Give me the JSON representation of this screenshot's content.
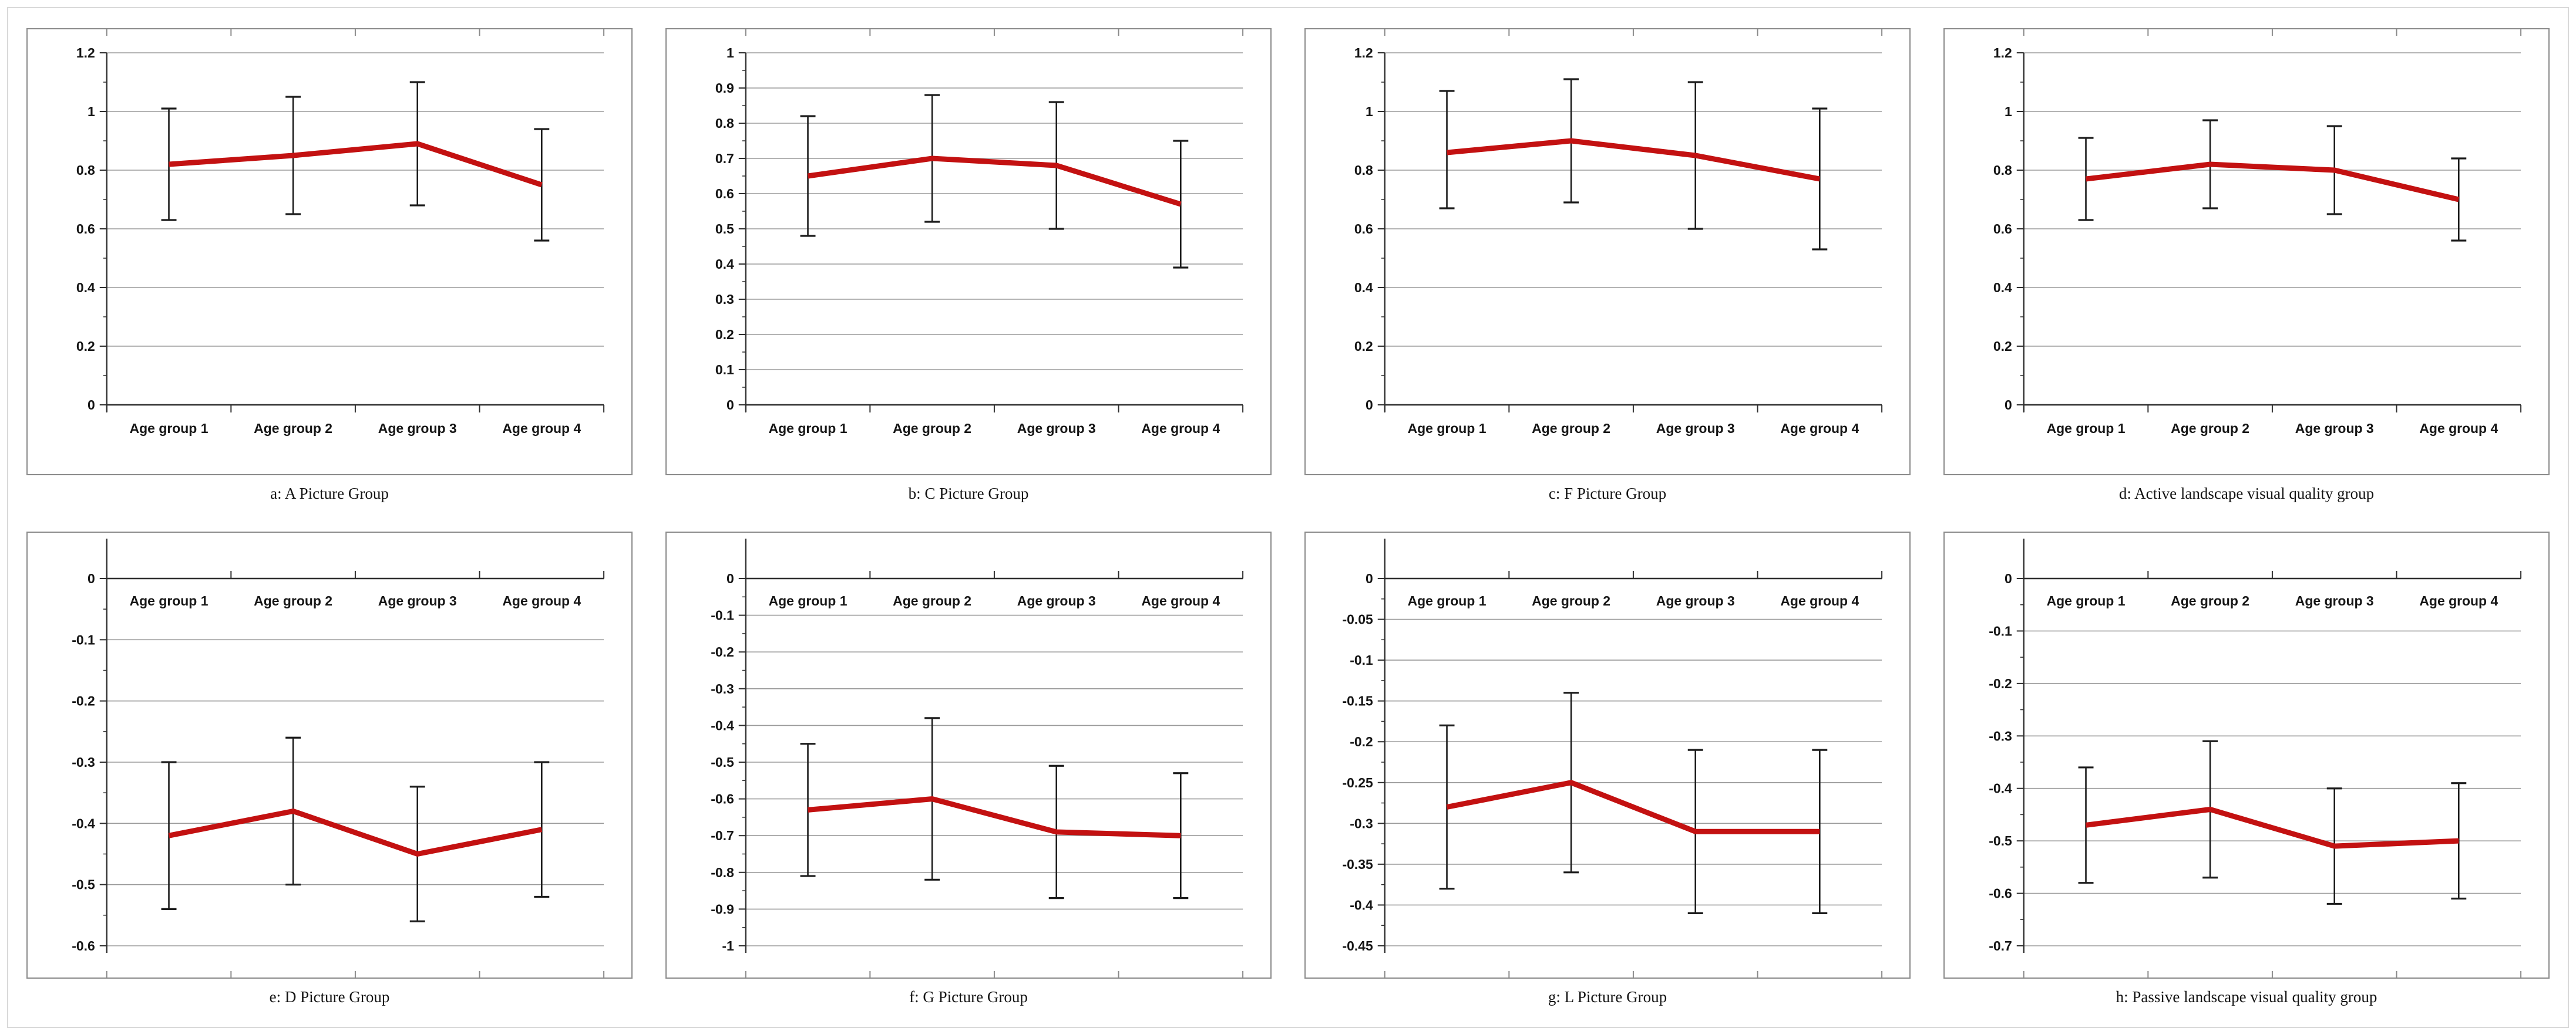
{
  "style": {
    "series_color": "#c31111",
    "grid_color": "#9b9b9b",
    "axis_color": "#2e2e2e",
    "error_bar_color": "#1c1c1c",
    "panel_border_color": "#8a8a8a",
    "frame_color": "#d9d9d9",
    "text_color": "#161616",
    "background": "#ffffff"
  },
  "chart_data": [
    {
      "id": "a",
      "type": "line",
      "caption": "a: A Picture Group",
      "x_axis_position": "bottom",
      "grid": true,
      "legend": "none",
      "categories": [
        "Age group 1",
        "Age group 2",
        "Age group 3",
        "Age group 4"
      ],
      "ylim": [
        0,
        1.2
      ],
      "ytick_values": [
        1.2,
        1,
        0.8,
        0.6,
        0.4,
        0.2,
        0
      ],
      "ytick_labels": [
        "1.2",
        "1",
        "0.8",
        "0.6",
        "0.4",
        "0.2",
        "0"
      ],
      "values": [
        0.82,
        0.85,
        0.89,
        0.75
      ],
      "err_low": [
        0.63,
        0.65,
        0.68,
        0.56
      ],
      "err_high": [
        1.01,
        1.05,
        1.1,
        0.94
      ]
    },
    {
      "id": "b",
      "type": "line",
      "caption": "b: C Picture Group",
      "x_axis_position": "bottom",
      "grid": true,
      "legend": "none",
      "categories": [
        "Age group 1",
        "Age group 2",
        "Age group 3",
        "Age group 4"
      ],
      "ylim": [
        0,
        1
      ],
      "ytick_values": [
        1,
        0.9,
        0.8,
        0.7,
        0.6,
        0.5,
        0.4,
        0.3,
        0.2,
        0.1,
        0
      ],
      "ytick_labels": [
        "1",
        "0.9",
        "0.8",
        "0.7",
        "0.6",
        "0.5",
        "0.4",
        "0.3",
        "0.2",
        "0.1",
        "0"
      ],
      "values": [
        0.65,
        0.7,
        0.68,
        0.57
      ],
      "err_low": [
        0.48,
        0.52,
        0.5,
        0.39
      ],
      "err_high": [
        0.82,
        0.88,
        0.86,
        0.75
      ]
    },
    {
      "id": "c",
      "type": "line",
      "caption": "c: F Picture Group",
      "x_axis_position": "bottom",
      "grid": true,
      "legend": "none",
      "categories": [
        "Age group 1",
        "Age group 2",
        "Age group 3",
        "Age group 4"
      ],
      "ylim": [
        0,
        1.2
      ],
      "ytick_values": [
        1.2,
        1,
        0.8,
        0.6,
        0.4,
        0.2,
        0
      ],
      "ytick_labels": [
        "1.2",
        "1",
        "0.8",
        "0.6",
        "0.4",
        "0.2",
        "0"
      ],
      "values": [
        0.86,
        0.9,
        0.85,
        0.77
      ],
      "err_low": [
        0.67,
        0.69,
        0.6,
        0.53
      ],
      "err_high": [
        1.07,
        1.11,
        1.1,
        1.01
      ]
    },
    {
      "id": "d",
      "type": "line",
      "caption": "d: Active landscape visual quality group",
      "x_axis_position": "bottom",
      "grid": true,
      "legend": "none",
      "categories": [
        "Age group 1",
        "Age group 2",
        "Age group 3",
        "Age group 4"
      ],
      "ylim": [
        0,
        1.2
      ],
      "ytick_values": [
        1.2,
        1,
        0.8,
        0.6,
        0.4,
        0.2,
        0
      ],
      "ytick_labels": [
        "1.2",
        "1",
        "0.8",
        "0.6",
        "0.4",
        "0.2",
        "0"
      ],
      "values": [
        0.77,
        0.82,
        0.8,
        0.7
      ],
      "err_low": [
        0.63,
        0.67,
        0.65,
        0.56
      ],
      "err_high": [
        0.91,
        0.97,
        0.95,
        0.84
      ]
    },
    {
      "id": "e",
      "type": "line",
      "caption": "e: D Picture Group",
      "x_axis_position": "top",
      "grid": true,
      "legend": "none",
      "categories": [
        "Age group 1",
        "Age group 2",
        "Age group 3",
        "Age group 4"
      ],
      "ylim": [
        -0.6,
        0
      ],
      "ytick_values": [
        0,
        -0.1,
        -0.2,
        -0.3,
        -0.4,
        -0.5,
        -0.6
      ],
      "ytick_labels": [
        "0",
        "-0.1",
        "-0.2",
        "-0.3",
        "-0.4",
        "-0.5",
        "-0.6"
      ],
      "values": [
        -0.42,
        -0.38,
        -0.45,
        -0.41
      ],
      "err_low": [
        -0.54,
        -0.5,
        -0.56,
        -0.52
      ],
      "err_high": [
        -0.3,
        -0.26,
        -0.34,
        -0.3
      ]
    },
    {
      "id": "f",
      "type": "line",
      "caption": "f: G Picture Group",
      "x_axis_position": "top",
      "grid": true,
      "legend": "none",
      "categories": [
        "Age group 1",
        "Age group 2",
        "Age group 3",
        "Age group 4"
      ],
      "ylim": [
        -1,
        0
      ],
      "ytick_values": [
        0,
        -0.1,
        -0.2,
        -0.3,
        -0.4,
        -0.5,
        -0.6,
        -0.7,
        -0.8,
        -0.9,
        -1
      ],
      "ytick_labels": [
        "0",
        "-0.1",
        "-0.2",
        "-0.3",
        "-0.4",
        "-0.5",
        "-0.6",
        "-0.7",
        "-0.8",
        "-0.9",
        "-1"
      ],
      "values": [
        -0.63,
        -0.6,
        -0.69,
        -0.7
      ],
      "err_low": [
        -0.81,
        -0.82,
        -0.87,
        -0.87
      ],
      "err_high": [
        -0.45,
        -0.38,
        -0.51,
        -0.53
      ]
    },
    {
      "id": "g",
      "type": "line",
      "caption": "g: L Picture Group",
      "x_axis_position": "top",
      "grid": true,
      "legend": "none",
      "categories": [
        "Age group 1",
        "Age group 2",
        "Age group 3",
        "Age group 4"
      ],
      "ylim": [
        -0.45,
        0
      ],
      "ytick_values": [
        0,
        -0.05,
        -0.1,
        -0.15,
        -0.2,
        -0.25,
        -0.3,
        -0.35,
        -0.4,
        -0.45
      ],
      "ytick_labels": [
        "0",
        "-0.05",
        "-0.1",
        "-0.15",
        "-0.2",
        "-0.25",
        "-0.3",
        "-0.35",
        "-0.4",
        "-0.45"
      ],
      "values": [
        -0.28,
        -0.25,
        -0.31,
        -0.31
      ],
      "err_low": [
        -0.38,
        -0.36,
        -0.41,
        -0.41
      ],
      "err_high": [
        -0.18,
        -0.14,
        -0.21,
        -0.21
      ]
    },
    {
      "id": "h",
      "type": "line",
      "caption": "h: Passive landscape visual quality group",
      "x_axis_position": "top",
      "grid": true,
      "legend": "none",
      "categories": [
        "Age group 1",
        "Age group 2",
        "Age group 3",
        "Age group 4"
      ],
      "ylim": [
        -0.7,
        0
      ],
      "ytick_values": [
        0,
        -0.1,
        -0.2,
        -0.3,
        -0.4,
        -0.5,
        -0.6,
        -0.7
      ],
      "ytick_labels": [
        "0",
        "-0.1",
        "-0.2",
        "-0.3",
        "-0.4",
        "-0.5",
        "-0.6",
        "-0.7"
      ],
      "values": [
        -0.47,
        -0.44,
        -0.51,
        -0.5
      ],
      "err_low": [
        -0.58,
        -0.57,
        -0.62,
        -0.61
      ],
      "err_high": [
        -0.36,
        -0.31,
        -0.4,
        -0.39
      ]
    }
  ]
}
